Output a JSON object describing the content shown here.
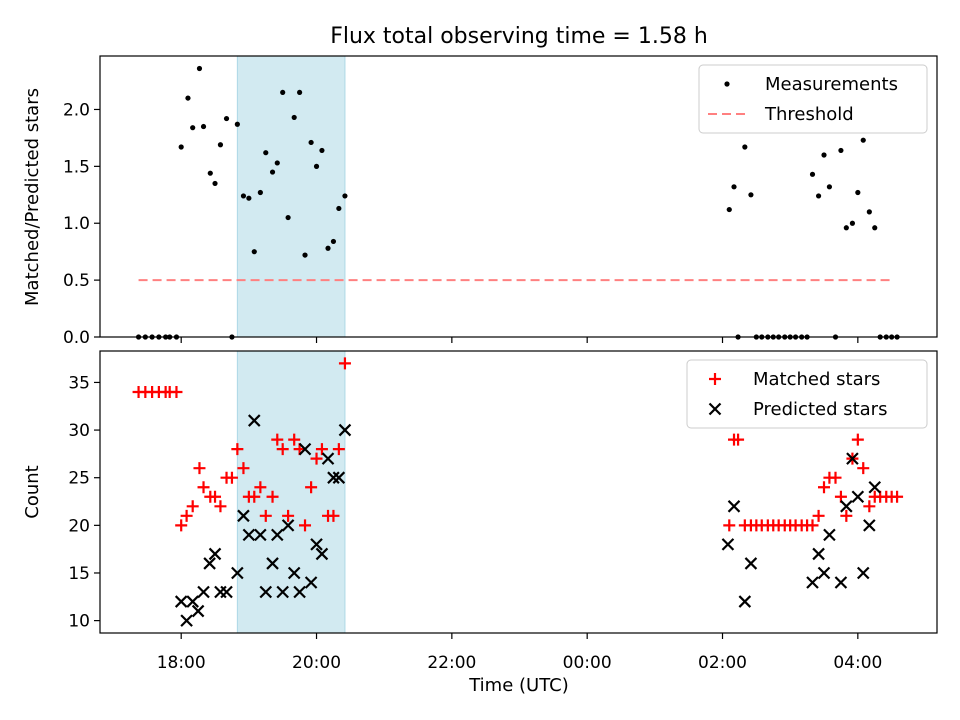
{
  "figure": {
    "title": "Flux total observing time = 1.58 h",
    "xlabel": "Time (UTC)",
    "xticks": [
      "18:00",
      "20:00",
      "22:00",
      "00:00",
      "02:00",
      "04:00"
    ],
    "shade_color": "#add8e6"
  },
  "chart_data": [
    {
      "type": "scatter",
      "ylabel": "Matched/Predicted stars",
      "ylim": [
        0,
        2.47
      ],
      "yticks": [
        "0.0",
        "0.5",
        "1.0",
        "1.5",
        "2.0"
      ],
      "x_range_hours": [
        16.8,
        29.17
      ],
      "shaded_interval_hours": [
        18.83,
        20.42
      ],
      "legend_position": "upper-right",
      "series": [
        {
          "name": "Measurements",
          "color": "#000000",
          "marker": "dot",
          "x_hours": [
            17.37,
            17.47,
            17.57,
            17.67,
            17.77,
            17.83,
            17.93,
            18.0,
            18.1,
            18.17,
            18.27,
            18.33,
            18.43,
            18.5,
            18.58,
            18.67,
            18.75,
            18.83,
            18.92,
            19.0,
            19.08,
            19.17,
            19.25,
            19.35,
            19.42,
            19.5,
            19.58,
            19.67,
            19.75,
            19.83,
            19.92,
            20.0,
            20.08,
            20.17,
            20.25,
            20.33,
            20.42,
            26.1,
            26.17,
            26.23,
            26.33,
            26.42,
            26.5,
            26.58,
            26.67,
            26.75,
            26.83,
            26.92,
            27.0,
            27.08,
            27.17,
            27.25,
            27.33,
            27.42,
            27.5,
            27.58,
            27.67,
            27.75,
            27.83,
            27.92,
            28.0,
            28.08,
            28.17,
            28.25,
            28.33,
            28.42,
            28.5,
            28.58
          ],
          "y": [
            0,
            0,
            0,
            0,
            0,
            0,
            0,
            1.67,
            2.1,
            1.84,
            2.36,
            1.85,
            1.44,
            1.35,
            1.69,
            1.92,
            0,
            1.87,
            1.24,
            1.22,
            0.75,
            1.27,
            1.62,
            1.45,
            1.53,
            2.15,
            1.05,
            1.93,
            2.15,
            0.72,
            1.71,
            1.5,
            1.64,
            0.78,
            0.84,
            1.13,
            1.24,
            1.12,
            1.32,
            0,
            1.67,
            1.25,
            0,
            0,
            0,
            0,
            0,
            0,
            0,
            0,
            0,
            0,
            1.43,
            1.24,
            1.6,
            1.32,
            0,
            1.64,
            0.96,
            1.0,
            1.27,
            1.73,
            1.1,
            0.96,
            0,
            0,
            0,
            0
          ]
        },
        {
          "name": "Threshold",
          "color": "#ff8080",
          "style": "dashed",
          "x_hours": [
            17.37,
            28.5
          ],
          "y": [
            0.5,
            0.5
          ]
        }
      ]
    },
    {
      "type": "scatter",
      "ylabel": "Count",
      "ylim": [
        8.7,
        38.3
      ],
      "yticks": [
        "10",
        "15",
        "20",
        "25",
        "30",
        "35"
      ],
      "legend_position": "upper-right",
      "series": [
        {
          "name": "Matched stars",
          "color": "#ff0000",
          "marker": "plus",
          "x_hours": [
            17.37,
            17.47,
            17.57,
            17.67,
            17.77,
            17.83,
            17.93,
            18.0,
            18.08,
            18.17,
            18.27,
            18.33,
            18.43,
            18.5,
            18.58,
            18.67,
            18.75,
            18.83,
            18.92,
            19.0,
            19.08,
            19.17,
            19.25,
            19.35,
            19.42,
            19.5,
            19.58,
            19.67,
            19.75,
            19.83,
            19.92,
            20.0,
            20.08,
            20.17,
            20.25,
            20.33,
            20.42,
            26.1,
            26.17,
            26.23,
            26.33,
            26.42,
            26.5,
            26.58,
            26.67,
            26.75,
            26.83,
            26.92,
            27.0,
            27.08,
            27.17,
            27.25,
            27.33,
            27.42,
            27.5,
            27.58,
            27.67,
            27.75,
            27.83,
            27.92,
            28.0,
            28.08,
            28.17,
            28.25,
            28.33,
            28.42,
            28.5,
            28.58
          ],
          "y": [
            34,
            34,
            34,
            34,
            34,
            34,
            34,
            20,
            21,
            22,
            26,
            24,
            23,
            23,
            22,
            25,
            25,
            28,
            26,
            23,
            23,
            24,
            21,
            23,
            29,
            28,
            21,
            29,
            28,
            20,
            24,
            27,
            28,
            21,
            21,
            28,
            37,
            20,
            29,
            29,
            20,
            20,
            20,
            20,
            20,
            20,
            20,
            20,
            20,
            20,
            20,
            20,
            20,
            21,
            24,
            25,
            25,
            23,
            21,
            27,
            29,
            26,
            22,
            23,
            23,
            23,
            23,
            23
          ]
        },
        {
          "name": "Predicted stars",
          "color": "#000000",
          "marker": "x",
          "x_hours": [
            18.0,
            18.08,
            18.17,
            18.25,
            18.33,
            18.42,
            18.5,
            18.58,
            18.67,
            18.83,
            18.92,
            19.0,
            19.08,
            19.17,
            19.25,
            19.35,
            19.42,
            19.5,
            19.58,
            19.67,
            19.75,
            19.83,
            19.92,
            20.0,
            20.08,
            20.17,
            20.25,
            20.33,
            20.42,
            26.08,
            26.17,
            26.33,
            26.42,
            27.33,
            27.42,
            27.5,
            27.58,
            27.75,
            27.83,
            27.92,
            28.0,
            28.08,
            28.17,
            28.25
          ],
          "y": [
            12,
            10,
            12,
            11,
            13,
            16,
            17,
            13,
            13,
            15,
            21,
            19,
            31,
            19,
            13,
            16,
            19,
            13,
            20,
            15,
            13,
            28,
            14,
            18,
            17,
            27,
            25,
            25,
            30,
            18,
            22,
            12,
            16,
            14,
            17,
            15,
            19,
            14,
            22,
            27,
            23,
            15,
            20,
            24
          ]
        }
      ]
    }
  ]
}
